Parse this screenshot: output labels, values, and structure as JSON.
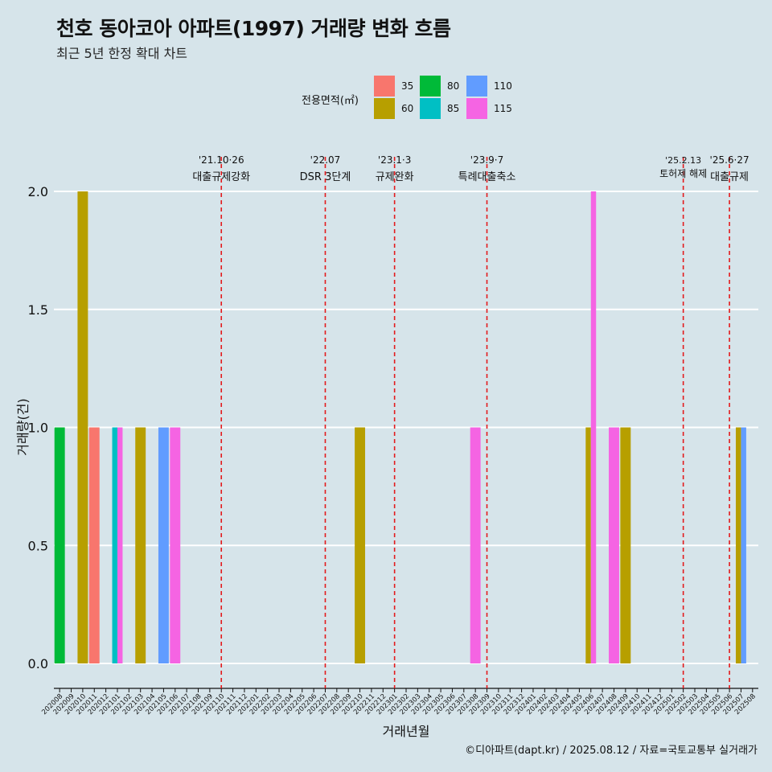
{
  "title": "천호 동아코아 아파트(1997) 거래량 변화 흐름",
  "subtitle": "최근 5년 한정 확대 차트",
  "legend": {
    "title": "전용면적(㎡)",
    "items": [
      {
        "label": "35",
        "color": "#F8766D"
      },
      {
        "label": "60",
        "color": "#B79F00"
      },
      {
        "label": "80",
        "color": "#00BA38"
      },
      {
        "label": "85",
        "color": "#00BFC4"
      },
      {
        "label": "110",
        "color": "#619CFF"
      },
      {
        "label": "115",
        "color": "#F564E3"
      }
    ]
  },
  "footer": "©디아파트(dapt.kr) / 2025.08.12 / 자료=국토교통부 실거래가",
  "chart_data": {
    "type": "bar",
    "xlabel": "거래년월",
    "ylabel": "거래량(건)",
    "ylim": [
      0,
      2
    ],
    "yticks": [
      "0.0",
      "0.5",
      "1.0",
      "1.5",
      "2.0"
    ],
    "categories": [
      "202008",
      "202009",
      "202010",
      "202011",
      "202012",
      "202101",
      "202102",
      "202103",
      "202104",
      "202105",
      "202106",
      "202107",
      "202108",
      "202109",
      "202110",
      "202111",
      "202112",
      "202201",
      "202202",
      "202203",
      "202204",
      "202205",
      "202206",
      "202207",
      "202208",
      "202209",
      "202210",
      "202211",
      "202212",
      "202301",
      "202302",
      "202303",
      "202304",
      "202305",
      "202306",
      "202307",
      "202308",
      "202309",
      "202310",
      "202311",
      "202312",
      "202401",
      "202402",
      "202403",
      "202404",
      "202405",
      "202406",
      "202407",
      "202408",
      "202409",
      "202410",
      "202411",
      "202412",
      "202501",
      "202502",
      "202503",
      "202504",
      "202505",
      "202506",
      "202507",
      "202508"
    ],
    "bars": [
      {
        "month": "202008",
        "area": "80",
        "value": 1
      },
      {
        "month": "202010",
        "area": "60",
        "value": 2
      },
      {
        "month": "202011",
        "area": "35",
        "value": 1
      },
      {
        "month": "202101",
        "area": "85",
        "value": 1
      },
      {
        "month": "202101",
        "area": "115",
        "value": 1
      },
      {
        "month": "202103",
        "area": "60",
        "value": 1
      },
      {
        "month": "202105",
        "area": "110",
        "value": 1
      },
      {
        "month": "202106",
        "area": "115",
        "value": 1
      },
      {
        "month": "202210",
        "area": "60",
        "value": 1
      },
      {
        "month": "202308",
        "area": "115",
        "value": 1
      },
      {
        "month": "202406",
        "area": "60",
        "value": 1
      },
      {
        "month": "202406",
        "area": "115",
        "value": 2
      },
      {
        "month": "202408",
        "area": "115",
        "value": 1
      },
      {
        "month": "202409",
        "area": "60",
        "value": 1
      },
      {
        "month": "202507",
        "area": "60",
        "value": 1
      },
      {
        "month": "202507",
        "area": "110",
        "value": 1
      }
    ],
    "annotations": [
      {
        "month": "202110",
        "date": "'21.10·26",
        "label": "대출규제강화"
      },
      {
        "month": "202207",
        "date": "'22.07",
        "label": "DSR 3단계"
      },
      {
        "month": "202301",
        "date": "'23.1·3",
        "label": "규제완화"
      },
      {
        "month": "202309",
        "date": "'23.9·7",
        "label": "특례대출축소"
      },
      {
        "month": "202502",
        "date": "'25.2.13",
        "label": "토허제 해제"
      },
      {
        "month": "202506",
        "date": "'25.6·27",
        "label": "대출규제"
      }
    ]
  }
}
